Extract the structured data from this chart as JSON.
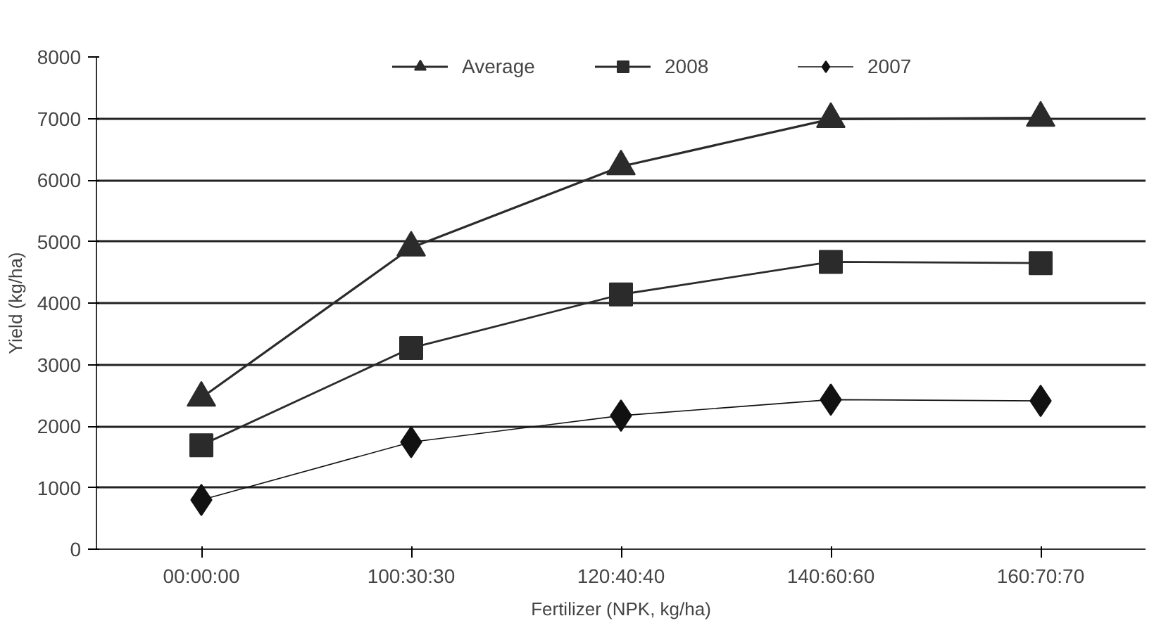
{
  "chart_data": {
    "type": "line",
    "xlabel": "Fertilizer (NPK, kg/ha)",
    "ylabel": "Yield (kg/ha)",
    "categories": [
      "00:00:00",
      "100:30:30",
      "120:40:40",
      "140:60:60",
      "160:70:70"
    ],
    "series": [
      {
        "name": "Average",
        "color": "#2b2b2b",
        "marker": "triangle",
        "values": [
          2460,
          4900,
          6220,
          6990,
          7010
        ]
      },
      {
        "name": "2008",
        "color": "#2b2b2b",
        "marker": "square",
        "values": [
          1690,
          3270,
          4140,
          4670,
          4650
        ]
      },
      {
        "name": "2007",
        "color": "#111111",
        "marker": "diamond",
        "values": [
          800,
          1740,
          2170,
          2430,
          2410
        ]
      }
    ],
    "ylim": [
      0,
      8000
    ],
    "yticks": [
      0,
      1000,
      2000,
      3000,
      4000,
      5000,
      6000,
      7000,
      8000
    ],
    "grid": "y",
    "legend": "top",
    "line_style": "solid"
  }
}
